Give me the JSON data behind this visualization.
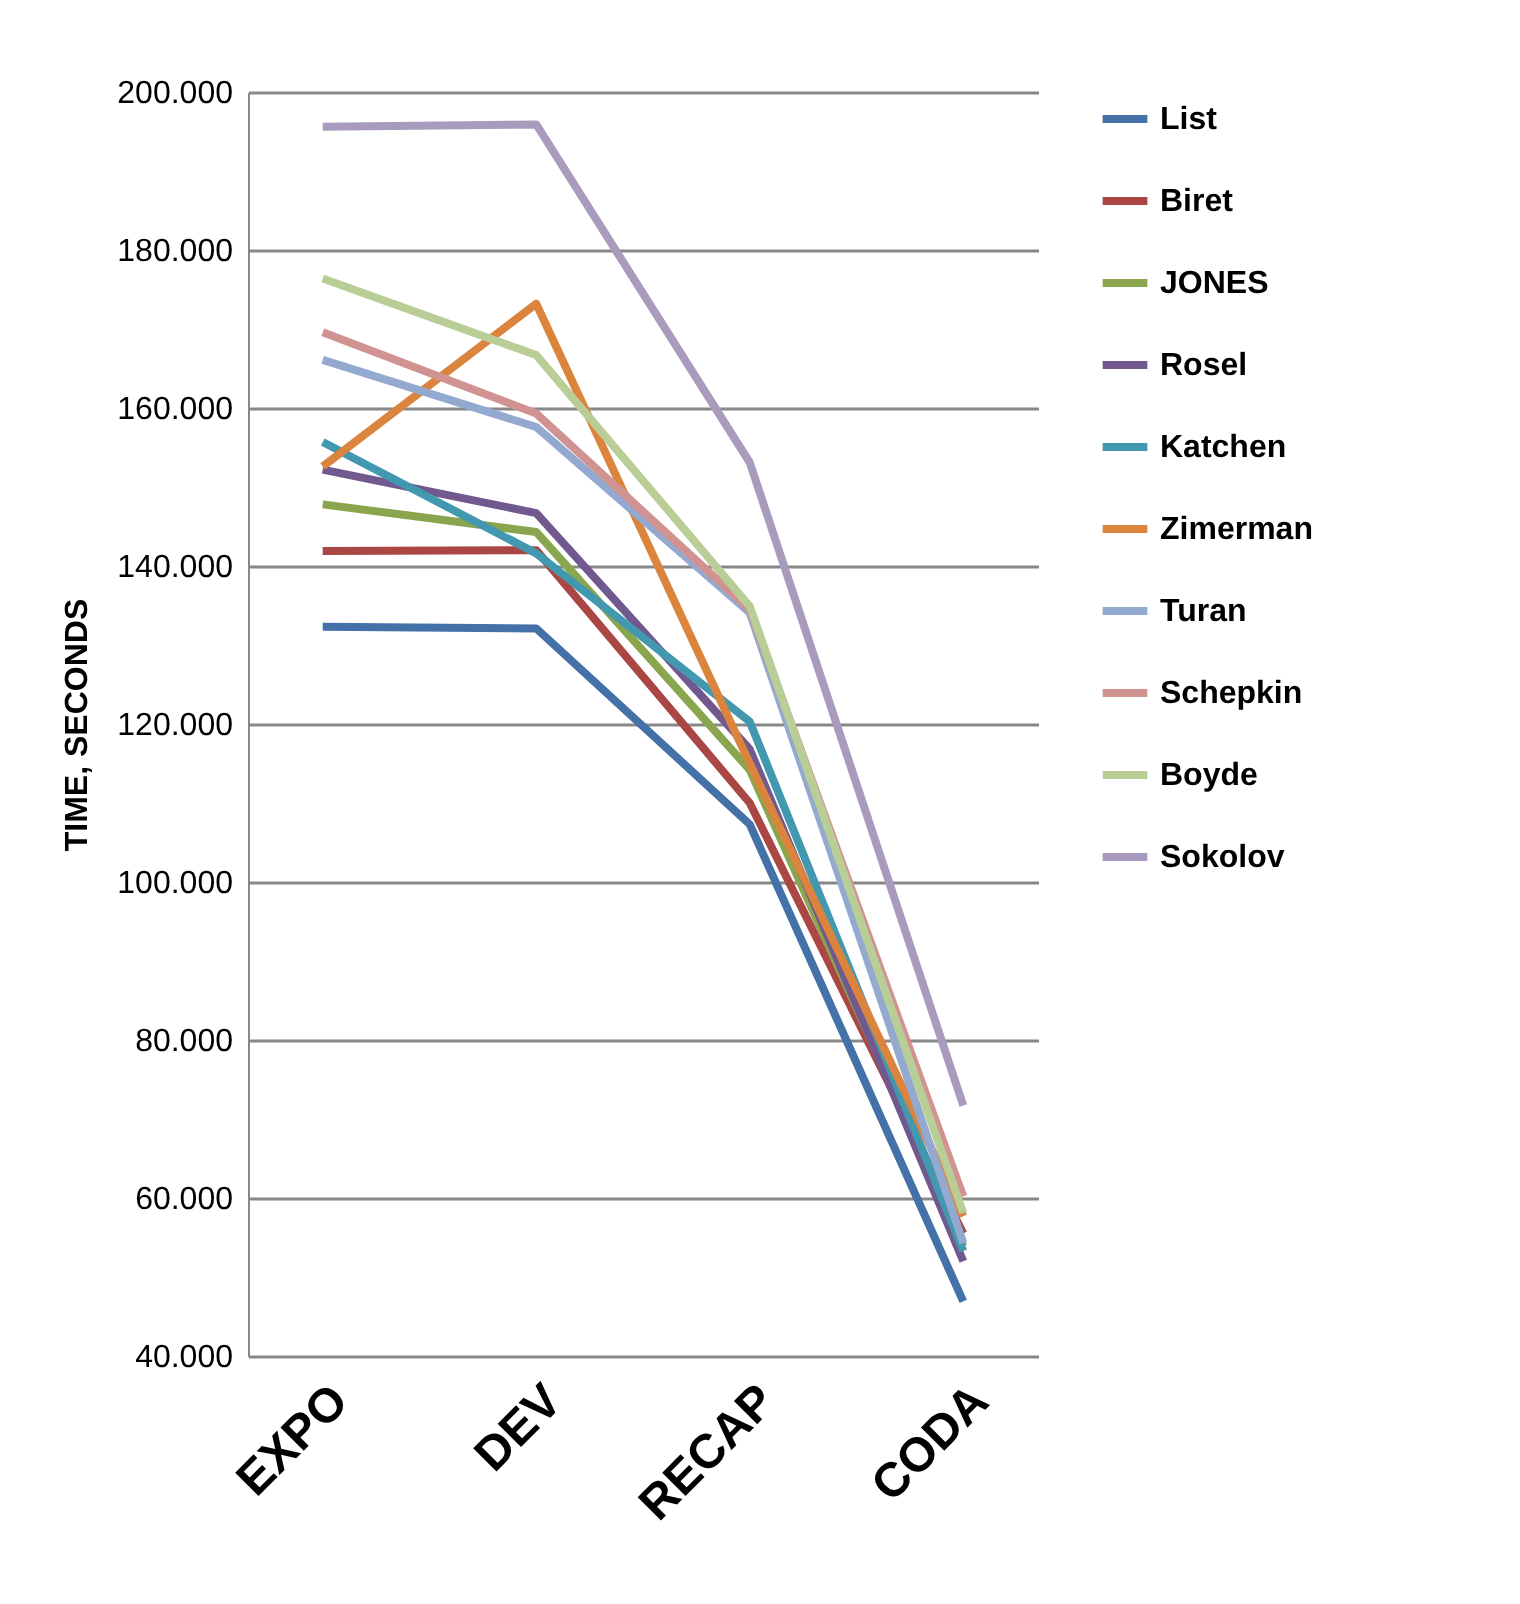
{
  "chart_data": {
    "type": "line",
    "ylabel": "TIME, SECONDS",
    "categories": [
      "EXPO",
      "DEV",
      "RECAP",
      "CODA"
    ],
    "ylim": [
      40,
      200
    ],
    "yticks": [
      {
        "value": 40,
        "label": "40.000"
      },
      {
        "value": 60,
        "label": "60.000"
      },
      {
        "value": 80,
        "label": "80.000"
      },
      {
        "value": 100,
        "label": "100.000"
      },
      {
        "value": 120,
        "label": "120.000"
      },
      {
        "value": 140,
        "label": "140.000"
      },
      {
        "value": 160,
        "label": "160.000"
      },
      {
        "value": 180,
        "label": "180.000"
      },
      {
        "value": 200,
        "label": "200.000"
      }
    ],
    "grid": "y",
    "legend": "right",
    "series": [
      {
        "name": "List",
        "color": "#4472a8",
        "values": [
          132.3,
          132.1,
          107.3,
          46.9
        ]
      },
      {
        "name": "Biret",
        "color": "#aa4643",
        "values": [
          141.9,
          142.0,
          110.0,
          55.5
        ]
      },
      {
        "name": "JONES",
        "color": "#89a54e",
        "values": [
          147.8,
          144.3,
          114.2,
          53.9
        ]
      },
      {
        "name": "Rosel",
        "color": "#71588f",
        "values": [
          152.2,
          146.7,
          116.8,
          52.0
        ]
      },
      {
        "name": "Katchen",
        "color": "#4198af",
        "values": [
          155.7,
          141.6,
          120.3,
          53.3
        ]
      },
      {
        "name": "Zimerman",
        "color": "#db843d",
        "values": [
          152.6,
          173.2,
          115.0,
          57.7
        ]
      },
      {
        "name": "Turan",
        "color": "#93a9cf",
        "values": [
          166.1,
          157.6,
          134.1,
          54.3
        ]
      },
      {
        "name": "Schepkin",
        "color": "#d19392",
        "values": [
          169.6,
          159.3,
          134.5,
          60.2
        ]
      },
      {
        "name": "Boyde",
        "color": "#b9cd96",
        "values": [
          176.4,
          166.7,
          134.9,
          58.1
        ]
      },
      {
        "name": "Sokolov",
        "color": "#a99bbd",
        "values": [
          195.6,
          195.9,
          153.1,
          71.7
        ]
      }
    ]
  }
}
